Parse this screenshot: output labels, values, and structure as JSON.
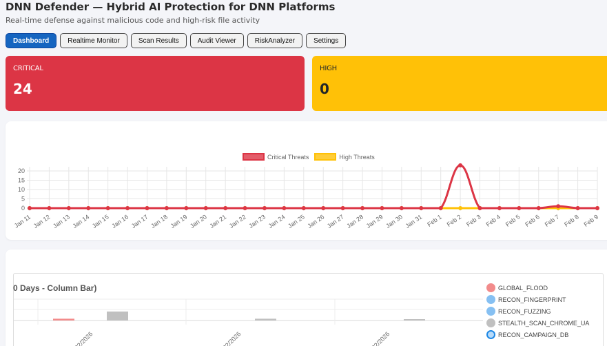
{
  "header": {
    "title": "DNN Defender — Hybrid AI Protection for DNN Platforms",
    "subtitle": "Real-time defense against malicious code and high-risk file activity"
  },
  "nav": {
    "tabs": [
      {
        "label": "Dashboard",
        "active": true
      },
      {
        "label": "Realtime Monitor",
        "active": false
      },
      {
        "label": "Scan Results",
        "active": false
      },
      {
        "label": "Audit Viewer",
        "active": false
      },
      {
        "label": "RiskAnalyzer",
        "active": false
      },
      {
        "label": "Settings",
        "active": false
      }
    ]
  },
  "stats": {
    "critical": {
      "label": "CRITICAL",
      "value": "24",
      "color": "#dc3545"
    },
    "high": {
      "label": "HIGH",
      "value": "0",
      "color": "#ffc107"
    }
  },
  "line_chart": {
    "legend": {
      "critical": "Critical Threats",
      "high": "High Threats"
    }
  },
  "bar_chart": {
    "title": "0 Days - Column Bar)",
    "x_labels": [
      "/02/2026",
      "/02/2026",
      "/02/2026"
    ],
    "legend": [
      {
        "label": "GLOBAL_FLOOD",
        "color": "#f28b8b"
      },
      {
        "label": "RECON_FINGERPRINT",
        "color": "#86c0f2"
      },
      {
        "label": "RECON_FUZZING",
        "color": "#86c0f2"
      },
      {
        "label": "STEALTH_SCAN_CHROME_UA",
        "color": "#c0c0c0"
      },
      {
        "label": "RECON_CAMPAIGN_DB",
        "color": "#b7dbfa"
      }
    ]
  },
  "chart_data": [
    {
      "type": "line",
      "title": "",
      "xlabel": "",
      "ylabel": "",
      "categories": [
        "Jan 11",
        "Jan 12",
        "Jan 13",
        "Jan 14",
        "Jan 15",
        "Jan 16",
        "Jan 17",
        "Jan 18",
        "Jan 19",
        "Jan 20",
        "Jan 21",
        "Jan 22",
        "Jan 23",
        "Jan 24",
        "Jan 25",
        "Jan 26",
        "Jan 27",
        "Jan 28",
        "Jan 29",
        "Jan 30",
        "Jan 31",
        "Feb 1",
        "Feb 2",
        "Feb 3",
        "Feb 4",
        "Feb 5",
        "Feb 6",
        "Feb 7",
        "Feb 8",
        "Feb 9"
      ],
      "series": [
        {
          "name": "Critical Threats",
          "color": "#dc3545",
          "values": [
            0,
            0,
            0,
            0,
            0,
            0,
            0,
            0,
            0,
            0,
            0,
            0,
            0,
            0,
            0,
            0,
            0,
            0,
            0,
            0,
            0,
            0,
            23,
            0,
            0,
            0,
            0,
            1,
            0,
            0
          ]
        },
        {
          "name": "High Threats",
          "color": "#ffc107",
          "values": [
            0,
            0,
            0,
            0,
            0,
            0,
            0,
            0,
            0,
            0,
            0,
            0,
            0,
            0,
            0,
            0,
            0,
            0,
            0,
            0,
            0,
            0,
            0,
            0,
            0,
            0,
            0,
            0,
            0,
            0
          ]
        }
      ],
      "yticks": [
        0,
        5,
        10,
        15,
        20
      ],
      "ylim": [
        0,
        24
      ],
      "grid": true,
      "legend_position": "top"
    },
    {
      "type": "bar",
      "title": "0 Days - Column Bar)",
      "categories": [
        "/02/2026",
        "/02/2026",
        "/02/2026"
      ],
      "series": [
        {
          "name": "GLOBAL_FLOOD",
          "values": [
            0.2,
            0,
            0
          ]
        },
        {
          "name": "RECON_FINGERPRINT",
          "values": [
            0,
            0,
            0
          ]
        },
        {
          "name": "RECON_FUZZING",
          "values": [
            0,
            0,
            0
          ]
        },
        {
          "name": "STEALTH_SCAN_CHROME_UA",
          "values": [
            1,
            0.2,
            0.1
          ]
        },
        {
          "name": "RECON_CAMPAIGN_DB",
          "values": [
            0,
            0,
            0
          ]
        }
      ],
      "grid": true,
      "legend_position": "right"
    }
  ]
}
